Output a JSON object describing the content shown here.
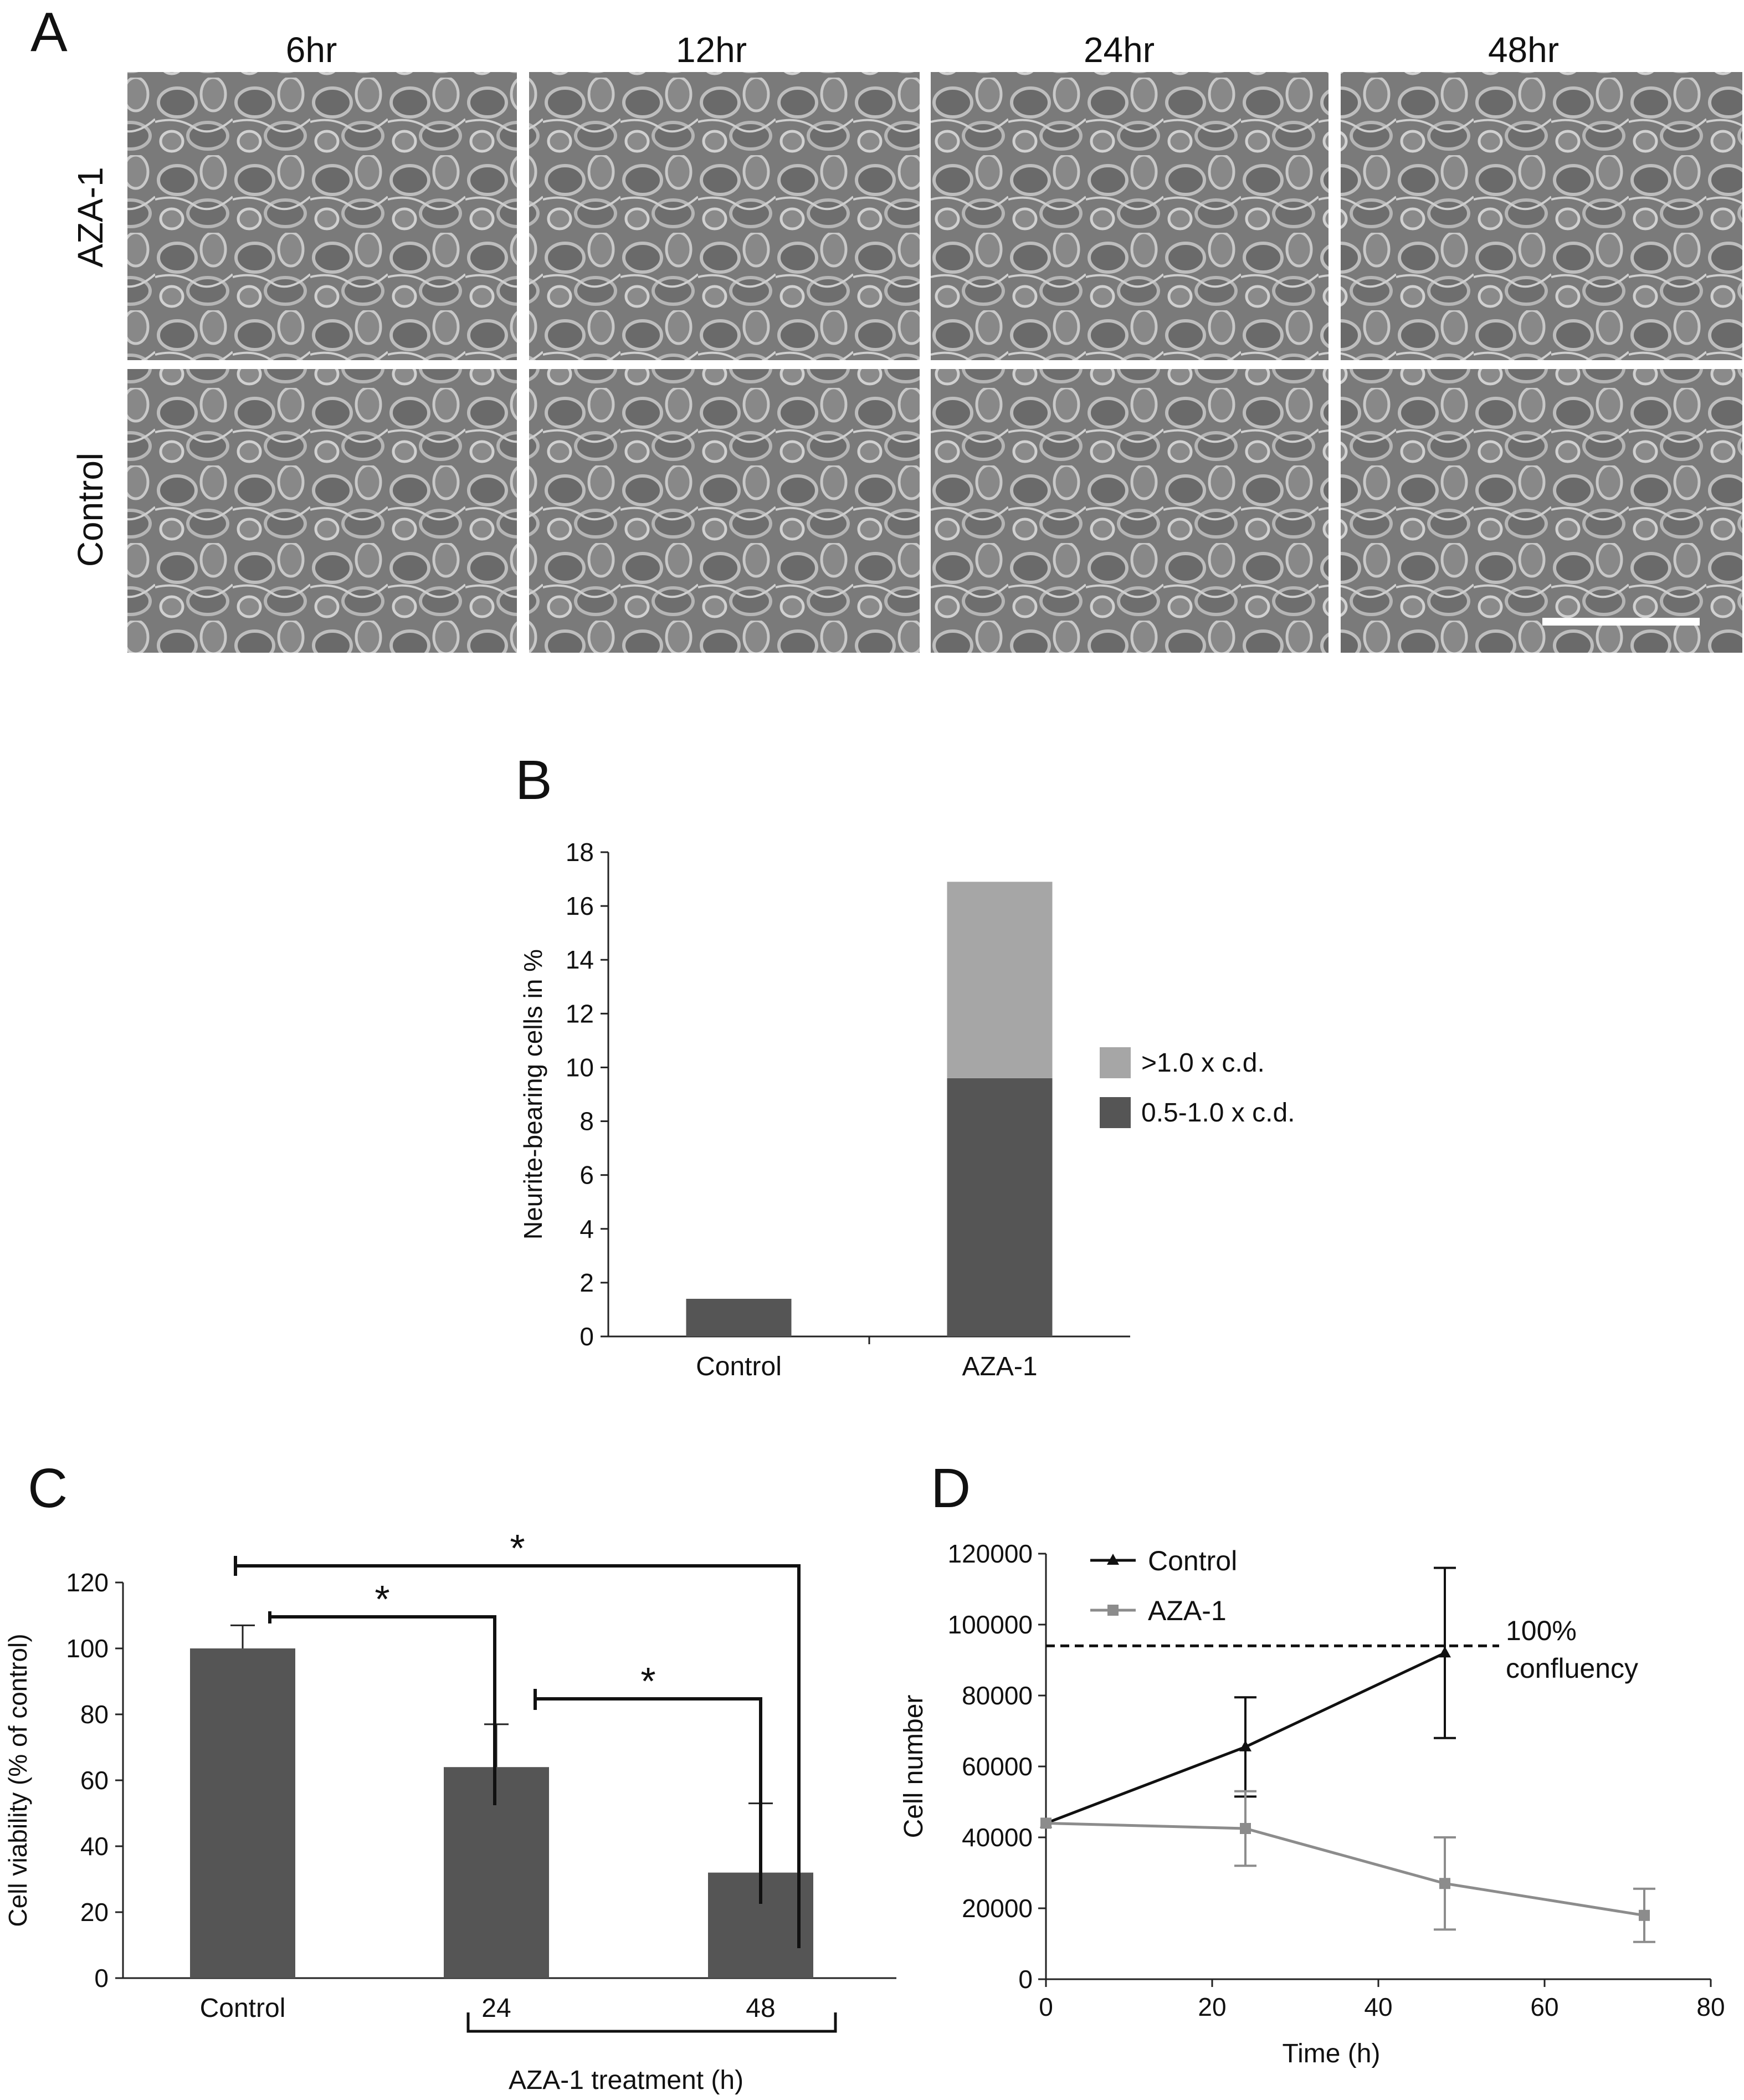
{
  "panel_a": {
    "letter": "A",
    "columns": [
      "6hr",
      "12hr",
      "24hr",
      "48hr"
    ],
    "rows": [
      "AZA-1",
      "Control"
    ]
  },
  "panel_b": {
    "letter": "B"
  },
  "panel_c": {
    "letter": "C",
    "significance_marks": [
      "*",
      "*",
      "*"
    ]
  },
  "panel_d": {
    "letter": "D",
    "annotation": [
      "100%",
      "confluency"
    ]
  },
  "colors": {
    "dark_bar": "#555555",
    "light_bar": "#a6a6a6",
    "control_line": "#111111",
    "aza_line": "#8c8c8c"
  },
  "chart_data": [
    {
      "panel": "B",
      "type": "bar",
      "stacked": true,
      "categories": [
        "Control",
        "AZA-1"
      ],
      "series": [
        {
          "name": "0.5-1.0 x c.d.",
          "values": [
            1.4,
            9.6
          ]
        },
        {
          "name": ">1.0 x c.d.",
          "values": [
            0,
            7.3
          ]
        }
      ],
      "ylabel": "Neurite-bearing cells in %",
      "ylim": [
        0,
        18
      ],
      "yticks": [
        0,
        2,
        4,
        6,
        8,
        10,
        12,
        14,
        16,
        18
      ],
      "legend": "right",
      "legend_order": [
        ">1.0 x c.d.",
        "0.5-1.0 x c.d."
      ]
    },
    {
      "panel": "C",
      "type": "bar",
      "categories": [
        "Control",
        "24",
        "48"
      ],
      "values": [
        100,
        64,
        32
      ],
      "errors": [
        7,
        13,
        21
      ],
      "ylabel": "Cell viability (% of control)",
      "xlabel": "AZA-1 treatment (h)",
      "ylim": [
        0,
        120
      ],
      "yticks": [
        0,
        20,
        40,
        60,
        80,
        100,
        120
      ],
      "significance": [
        {
          "from": "Control",
          "to": "48",
          "label": "*"
        },
        {
          "from": "Control",
          "to": "24",
          "label": "*"
        },
        {
          "from": "24",
          "to": "48",
          "label": "*"
        }
      ]
    },
    {
      "panel": "D",
      "type": "line",
      "xlabel": "Time (h)",
      "ylabel": "Cell number",
      "xlim": [
        0,
        80
      ],
      "ylim": [
        0,
        120000
      ],
      "xticks": [
        0,
        20,
        40,
        60,
        80
      ],
      "yticks": [
        0,
        20000,
        40000,
        60000,
        80000,
        100000,
        120000
      ],
      "series": [
        {
          "name": "Control",
          "x": [
            0,
            24,
            48
          ],
          "y": [
            44000,
            65500,
            92000
          ],
          "errors": [
            0,
            14000,
            24000
          ],
          "marker": "triangle"
        },
        {
          "name": "AZA-1",
          "x": [
            0,
            24,
            48,
            72
          ],
          "y": [
            44000,
            42500,
            27000,
            18000
          ],
          "errors": [
            0,
            10500,
            13000,
            7500
          ],
          "marker": "square"
        }
      ],
      "reference_line": {
        "y": 94000,
        "style": "dashed"
      },
      "legend": "top-left"
    }
  ]
}
